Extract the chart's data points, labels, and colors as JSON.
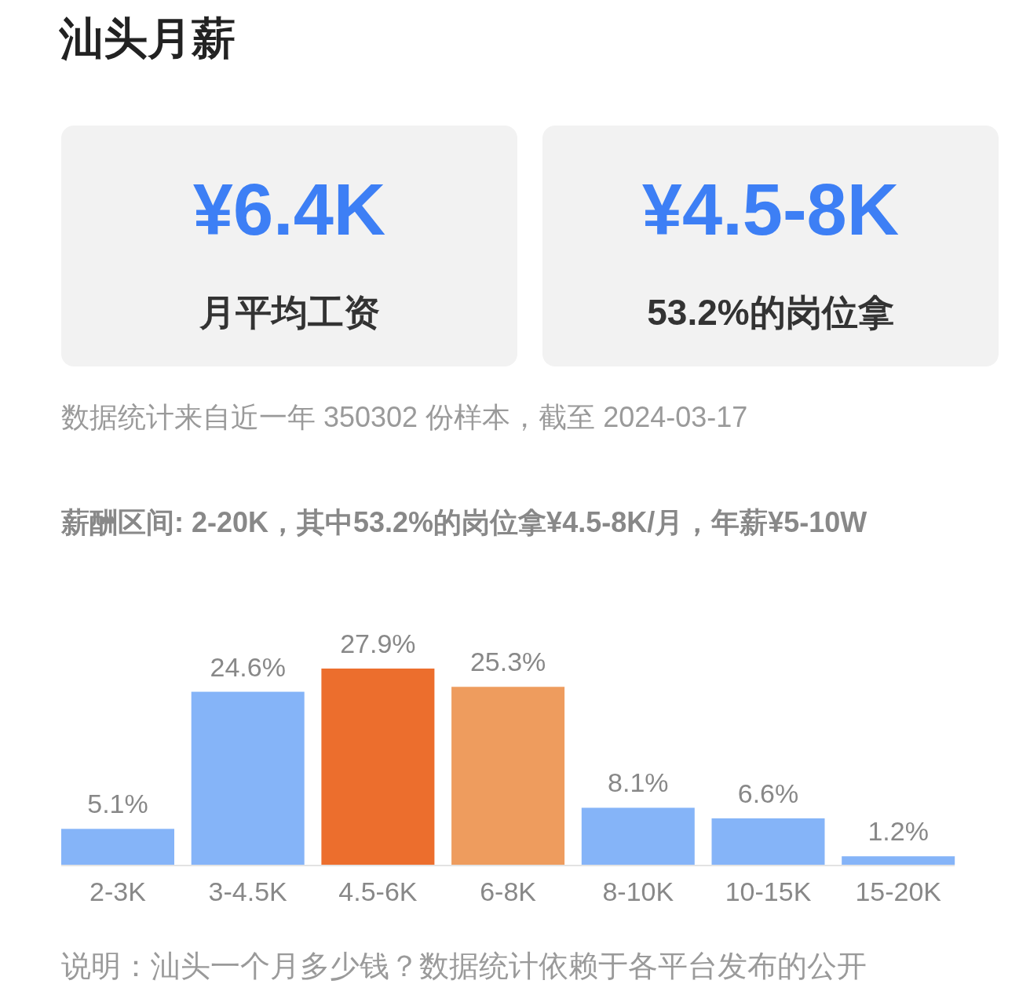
{
  "chart_data": [
    {
      "type": "other",
      "title": "汕头月薪",
      "annotations": [
        "¥6.4K",
        "月平均工资",
        "¥4.5-8K",
        "53.2%的岗位拿",
        "数据统计来自近一年 350302 份样本，截至 2024-03-17"
      ]
    },
    {
      "type": "bar",
      "title": "薪酬区间: 2-20K，其中53.2%的岗位拿¥4.5-8K/月，年薪¥5-10W",
      "categories": [
        "2-3K",
        "3-4.5K",
        "4.5-6K",
        "6-8K",
        "8-10K",
        "10-15K",
        "15-20K"
      ],
      "values": [
        5.1,
        24.6,
        27.9,
        25.3,
        8.1,
        6.6,
        1.2
      ],
      "value_labels": [
        "5.1%",
        "24.6%",
        "27.9%",
        "25.3%",
        "8.1%",
        "6.6%",
        "1.2%"
      ],
      "colors": [
        "#85b4f8",
        "#85b4f8",
        "#ec6e2d",
        "#ee9c5e",
        "#85b4f8",
        "#85b4f8",
        "#85b4f8"
      ],
      "annotations": [
        "说明：汕头一个月多少钱？数据统计依赖于各平台发布的公开"
      ]
    }
  ]
}
